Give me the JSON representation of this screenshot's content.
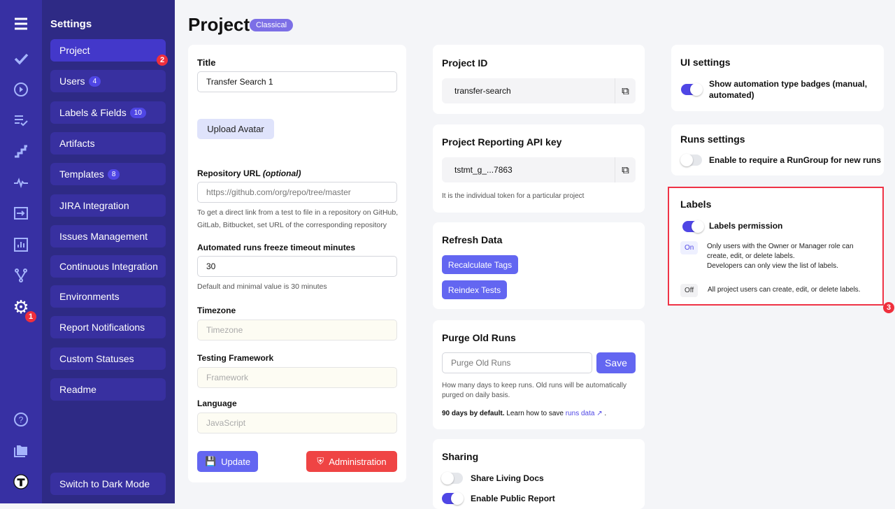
{
  "rail": {
    "icons": [
      "menu-icon",
      "check-icon",
      "play-icon",
      "list-check-icon",
      "steps-icon",
      "pulse-icon",
      "import-icon",
      "chart-icon",
      "branch-icon",
      "gear-icon",
      "help-icon",
      "folder-icon",
      "avatar-icon"
    ],
    "settings_badge": "1"
  },
  "sidebar": {
    "title": "Settings",
    "items": [
      {
        "label": "Project",
        "badge": null
      },
      {
        "label": "Users",
        "badge": "4"
      },
      {
        "label": "Labels & Fields",
        "badge": "10"
      },
      {
        "label": "Artifacts",
        "badge": null
      },
      {
        "label": "Templates",
        "badge": "8"
      },
      {
        "label": "JIRA Integration",
        "badge": null
      },
      {
        "label": "Issues Management",
        "badge": null
      },
      {
        "label": "Continuous Integration",
        "badge": null
      },
      {
        "label": "Environments",
        "badge": null
      },
      {
        "label": "Report Notifications",
        "badge": null
      },
      {
        "label": "Custom Statuses",
        "badge": null
      },
      {
        "label": "Readme",
        "badge": null
      }
    ],
    "project_marker": "2",
    "dark_mode": "Switch to Dark Mode"
  },
  "header": {
    "title": "Project",
    "tag": "Classical"
  },
  "form": {
    "title_label": "Title",
    "title_value": "Transfer Search 1",
    "upload": "Upload Avatar",
    "repo_label": "Repository URL",
    "repo_optional": "(optional)",
    "repo_placeholder": "https://github.com/org/repo/tree/master",
    "repo_hint": "To get a direct link from a test to file in a repository on GitHub, GitLab, Bitbucket, set URL of the corresponding repository",
    "freeze_label": "Automated runs freeze timeout minutes",
    "freeze_value": "30",
    "freeze_hint": "Default and minimal value is 30 minutes",
    "tz_label": "Timezone",
    "tz_placeholder": "Timezone",
    "fw_label": "Testing Framework",
    "fw_placeholder": "Framework",
    "lang_label": "Language",
    "lang_placeholder": "JavaScript",
    "update": "Update",
    "admin": "Administration"
  },
  "project_id": {
    "title": "Project ID",
    "value": "transfer-search"
  },
  "api_key": {
    "title": "Project Reporting API key",
    "value": "tstmt_g_...7863",
    "hint": "It is the individual token for a particular project"
  },
  "refresh": {
    "title": "Refresh Data",
    "recalc": "Recalculate Tags",
    "reindex": "Reindex Tests"
  },
  "purge": {
    "title": "Purge Old Runs",
    "placeholder": "Purge Old Runs",
    "save": "Save",
    "hint": "How many days to keep runs. Old runs will be automatically purged on daily basis.",
    "bold": "90 days by default.",
    "learn": "Learn how to save",
    "link": "runs data",
    "end": "."
  },
  "sharing": {
    "title": "Sharing",
    "items": [
      {
        "label": "Share Living Docs",
        "on": false
      },
      {
        "label": "Enable Public Report",
        "on": true
      }
    ]
  },
  "ui_settings": {
    "title": "UI settings",
    "toggle_label": "Show automation type badges (manual, automated)",
    "on": true
  },
  "runs_settings": {
    "title": "Runs settings",
    "toggle_label": "Enable to require a RunGroup for new runs",
    "on": false
  },
  "labels": {
    "title": "Labels",
    "toggle_label": "Labels permission",
    "on": true,
    "on_pill": "On",
    "on_desc": "Only users with the Owner or Manager role can create, edit, or delete labels.",
    "on_desc2": "Developers can only view the list of labels.",
    "off_pill": "Off",
    "off_desc": "All project users can create, edit, or delete labels.",
    "marker": "3"
  },
  "colors": {
    "accent": "#6366f1",
    "danger": "#ef4444",
    "rail": "#3730a3",
    "panel": "#2e2a85"
  }
}
